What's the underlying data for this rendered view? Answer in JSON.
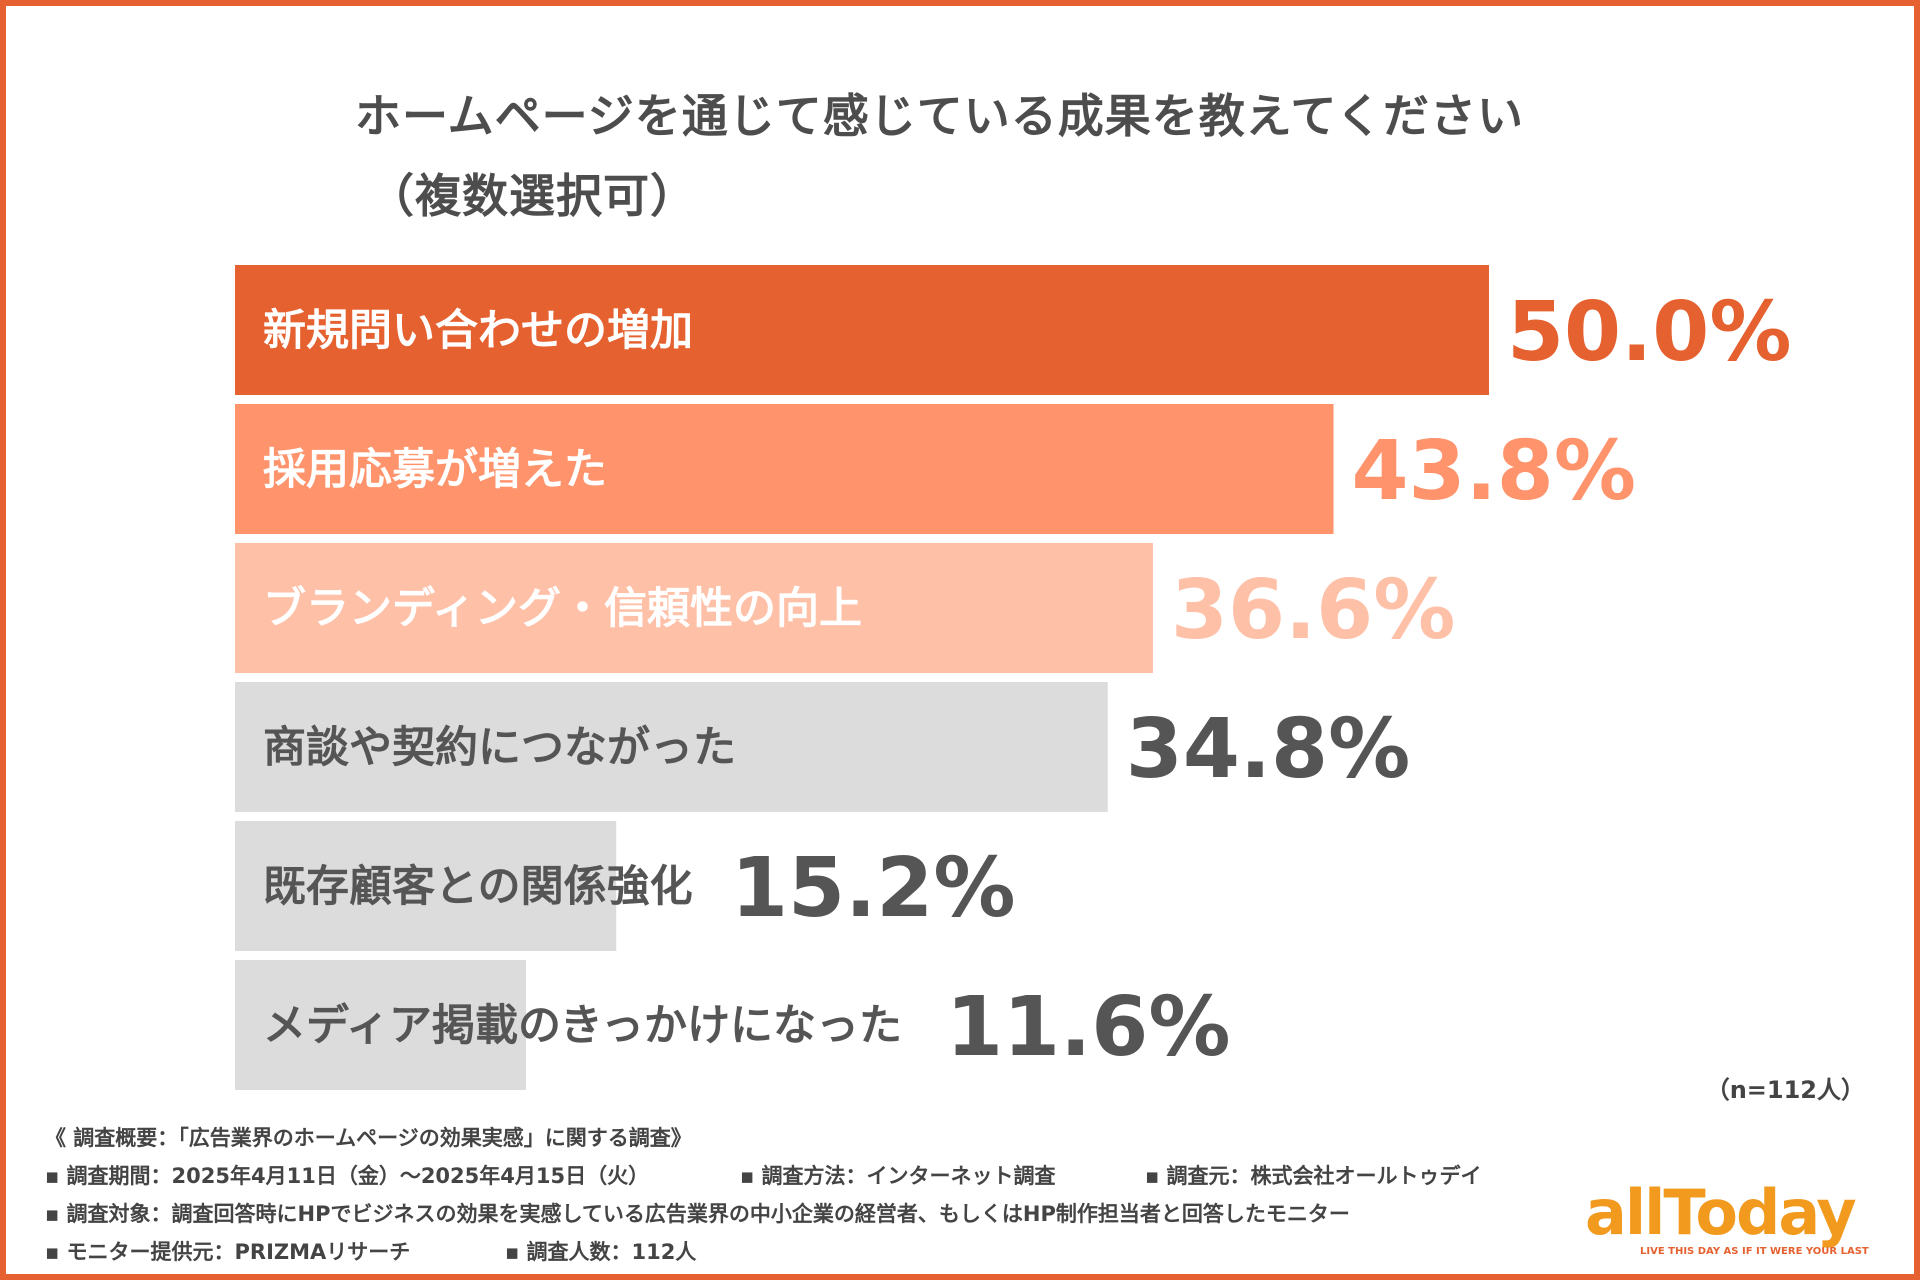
{
  "chart_data": {
    "type": "bar",
    "orientation": "horizontal",
    "title": "ホームページを通じて感じている成果を教えてください",
    "subtitle": "（複数選択可）",
    "categories": [
      "新規問い合わせの増加",
      "採用応募が増えた",
      "ブランディング・信頼性の向上",
      "商談や契約につながった",
      "既存顧客との関係強化",
      "メディア掲載のきっかけになった"
    ],
    "values": [
      50.0,
      43.8,
      36.6,
      34.8,
      15.2,
      11.6
    ],
    "value_labels": [
      "50.0%",
      "43.8%",
      "36.6%",
      "34.8%",
      "15.2%",
      "11.6%"
    ],
    "bar_colors": [
      "#e5612f",
      "#ff936b",
      "#ffc0a8",
      "#dcdcdc",
      "#dcdcdc",
      "#dcdcdc"
    ],
    "label_colors": [
      "#ffffff",
      "#ffffff",
      "#ffffff",
      "#555555",
      "#555555",
      "#555555"
    ],
    "value_colors": [
      "#e5612f",
      "#ff936b",
      "#ffc0a8",
      "#555555",
      "#555555",
      "#555555"
    ],
    "xlim": [
      0,
      50
    ],
    "grid": false,
    "xlabel": "",
    "ylabel": ""
  },
  "sample_size": "（n=112人）",
  "notes": {
    "survey_title": "《 調査概要：「広告業界のホームページの効果実感」に関する調査》",
    "period": "▪ 調査期間：2025年4月11日（金）〜2025年4月15日（火）",
    "method": "▪ 調査方法：インターネット調査",
    "source": "▪ 調査元：株式会社オールトゥデイ",
    "target": "▪ 調査対象：調査回答時にHPでビジネスの効果を実感している広告業界の中小企業の経営者、もしくはHP制作担当者と回答したモニター",
    "provider": "▪ モニター提供元：PRIZMAリサーチ",
    "count": "▪ 調査人数：112人"
  },
  "logo": {
    "word": "allToday",
    "tagline": "LIVE THIS DAY AS IF IT WERE YOUR LAST",
    "color": "#f19a1e"
  },
  "colors": {
    "frame": "#e5612f"
  }
}
